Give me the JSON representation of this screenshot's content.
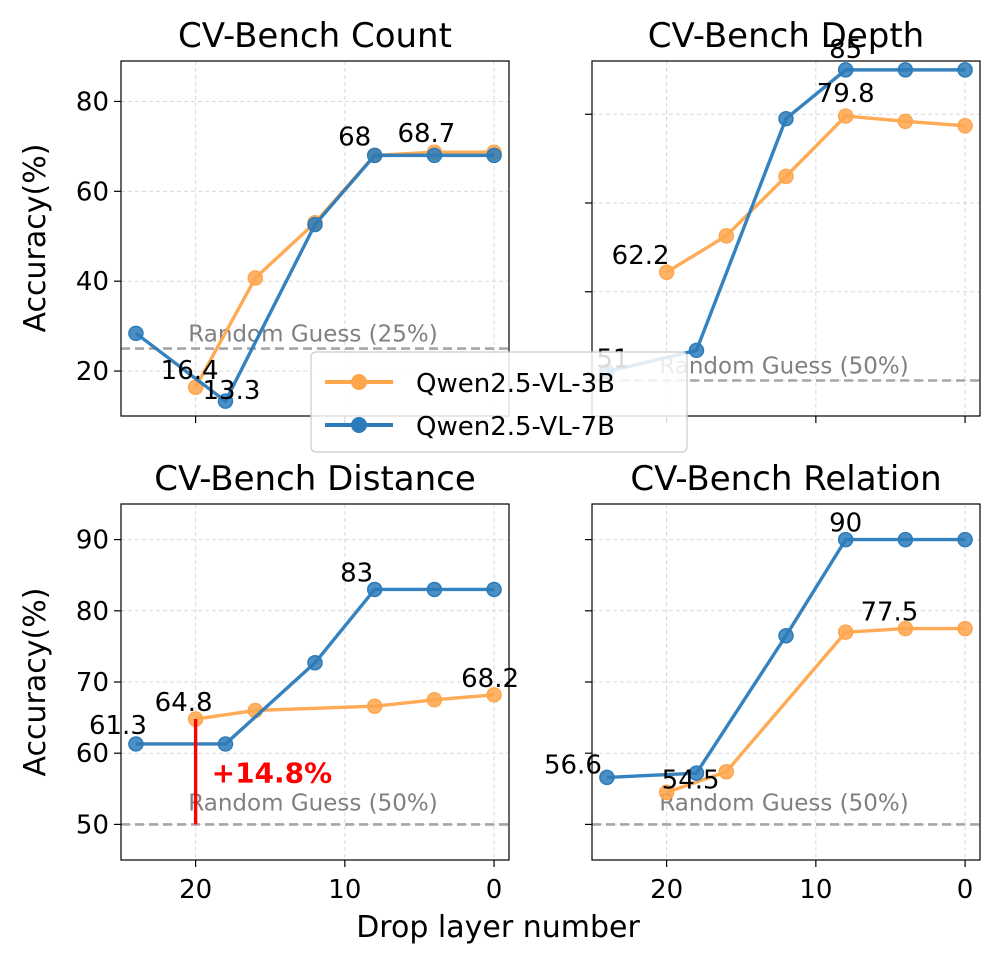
{
  "figure": {
    "xlabel": "Drop layer number",
    "ylabel": "Accuracy(%)",
    "legend": [
      {
        "name": "Qwen2.5-VL-3B",
        "color": "#ffa64d"
      },
      {
        "name": "Qwen2.5-VL-7B",
        "color": "#2b7bba"
      }
    ]
  },
  "chart_data": [
    {
      "type": "line",
      "title": "CV-Bench Count",
      "xlim": [
        25,
        -1
      ],
      "ylim": [
        10,
        89
      ],
      "xticks": [
        20,
        10,
        0
      ],
      "yticks": [
        20,
        40,
        60,
        80
      ],
      "grid": true,
      "reference": {
        "y": 25,
        "label": "Random Guess (25%)"
      },
      "series": [
        {
          "name": "Qwen2.5-VL-3B",
          "x": [
            20,
            16,
            12,
            8,
            4,
            0
          ],
          "y": [
            16.4,
            40.7,
            53.0,
            68.0,
            68.7,
            68.7
          ]
        },
        {
          "name": "Qwen2.5-VL-7B",
          "x": [
            24,
            18,
            12,
            8,
            4,
            0
          ],
          "y": [
            28.4,
            13.3,
            52.6,
            68.0,
            68.0,
            68.0
          ]
        }
      ],
      "annotations": [
        {
          "text": "16.4",
          "x": 20,
          "y": 16.4
        },
        {
          "text": "13.3",
          "x": 18,
          "y": 13.3
        },
        {
          "text": "68",
          "x": 8,
          "y": 68
        },
        {
          "text": "68.7",
          "x": 4,
          "y": 68.7
        }
      ]
    },
    {
      "type": "line",
      "title": "CV-Bench Depth",
      "xlim": [
        25,
        -1
      ],
      "ylim": [
        46,
        86
      ],
      "xticks": [
        20,
        10,
        0
      ],
      "yticks": [
        50,
        60,
        70,
        80
      ],
      "grid": true,
      "reference": {
        "y": 50,
        "label": "Random Guess (50%)"
      },
      "series": [
        {
          "name": "Qwen2.5-VL-3B",
          "x": [
            20,
            16,
            12,
            8,
            4,
            0
          ],
          "y": [
            62.2,
            66.3,
            73.0,
            79.8,
            79.2,
            78.7
          ]
        },
        {
          "name": "Qwen2.5-VL-7B",
          "x": [
            24,
            18,
            12,
            8,
            4,
            0
          ],
          "y": [
            51.0,
            53.4,
            79.5,
            85.0,
            85.0,
            85.0
          ]
        }
      ],
      "annotations": [
        {
          "text": "62.2",
          "x": 20,
          "y": 62.2
        },
        {
          "text": "51",
          "x": 24,
          "y": 51
        },
        {
          "text": "85",
          "x": 8,
          "y": 85
        },
        {
          "text": "79.8",
          "x": 8,
          "y": 79.8
        }
      ]
    },
    {
      "type": "line",
      "title": "CV-Bench Distance",
      "xlim": [
        25,
        -1
      ],
      "ylim": [
        45,
        95
      ],
      "xticks": [
        20,
        10,
        0
      ],
      "yticks": [
        50,
        60,
        70,
        80,
        90
      ],
      "grid": true,
      "reference": {
        "y": 50,
        "label": "Random Guess (50%)"
      },
      "series": [
        {
          "name": "Qwen2.5-VL-3B",
          "x": [
            20,
            16,
            8,
            4,
            0
          ],
          "y": [
            64.8,
            66.0,
            66.6,
            67.5,
            68.2
          ]
        },
        {
          "name": "Qwen2.5-VL-7B",
          "x": [
            24,
            18,
            12,
            8,
            4,
            0
          ],
          "y": [
            61.3,
            61.3,
            72.7,
            83.0,
            83.0,
            83.0
          ]
        }
      ],
      "annotations": [
        {
          "text": "61.3",
          "x": 24,
          "y": 61.3
        },
        {
          "text": "64.8",
          "x": 20,
          "y": 64.8
        },
        {
          "text": "83",
          "x": 8,
          "y": 83
        },
        {
          "text": "68.2",
          "x": 0,
          "y": 68.2
        }
      ],
      "highlight": {
        "text": "+14.8%",
        "x": 20,
        "y_from": 50,
        "y_to": 64.8,
        "color": "#ff0000"
      }
    },
    {
      "type": "line",
      "title": "CV-Bench Relation",
      "xlim": [
        25,
        -1
      ],
      "ylim": [
        45,
        95
      ],
      "xticks": [
        20,
        10,
        0
      ],
      "yticks": [
        50,
        60,
        70,
        80,
        90
      ],
      "grid": true,
      "reference": {
        "y": 50,
        "label": "Random Guess (50%)"
      },
      "series": [
        {
          "name": "Qwen2.5-VL-3B",
          "x": [
            20,
            16,
            8,
            4,
            0
          ],
          "y": [
            54.5,
            57.4,
            77.0,
            77.5,
            77.5
          ]
        },
        {
          "name": "Qwen2.5-VL-7B",
          "x": [
            24,
            18,
            12,
            8,
            4,
            0
          ],
          "y": [
            56.6,
            57.2,
            76.5,
            90.0,
            90.0,
            90.0
          ]
        }
      ],
      "annotations": [
        {
          "text": "56.6",
          "x": 24,
          "y": 56.6
        },
        {
          "text": "54.5",
          "x": 20,
          "y": 54.5
        },
        {
          "text": "90",
          "x": 8,
          "y": 90
        },
        {
          "text": "77.5",
          "x": 4,
          "y": 77.5
        }
      ]
    }
  ]
}
